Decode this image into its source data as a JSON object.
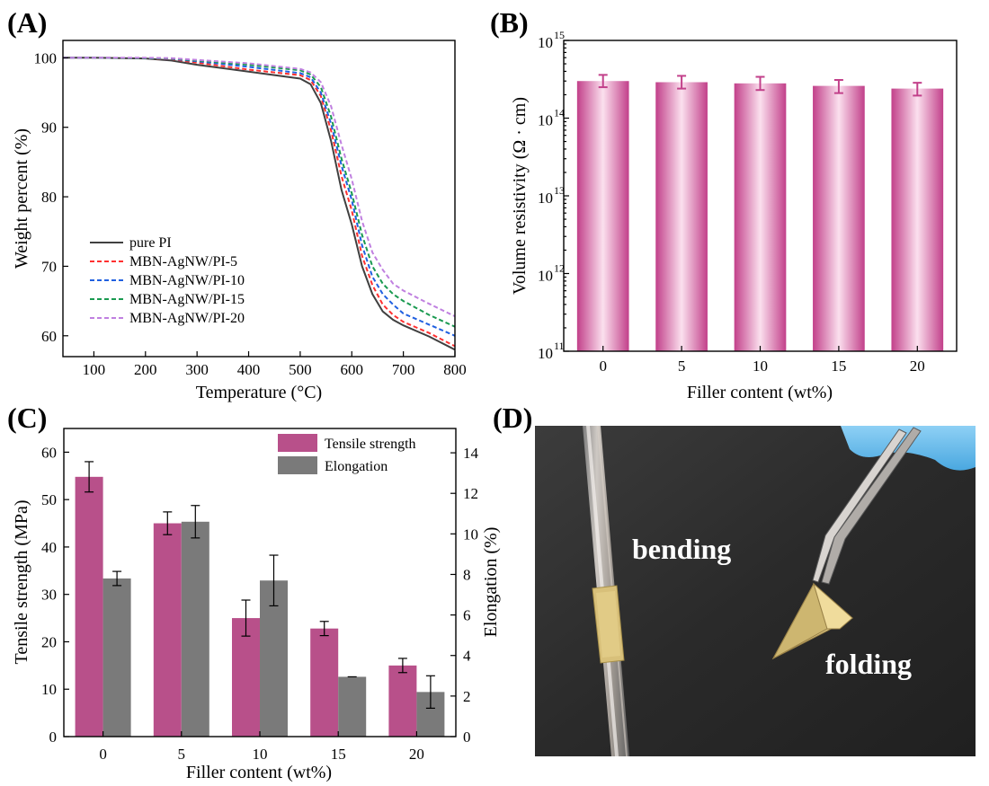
{
  "panels": {
    "a": "(A)",
    "b": "(B)",
    "c": "(C)",
    "d": "(D)"
  },
  "chart_data": [
    {
      "id": "A",
      "type": "line",
      "title": "",
      "xlabel": "Temperature (°C)",
      "ylabel": "Weight percent (%)",
      "xlim": [
        40,
        800
      ],
      "ylim": [
        57,
        102.5
      ],
      "xticks": [
        "100",
        "200",
        "300",
        "400",
        "500",
        "600",
        "700",
        "800"
      ],
      "yticks": [
        "60",
        "70",
        "80",
        "90",
        "100"
      ],
      "grid": false,
      "legend": "bottom-left",
      "series": [
        {
          "name": "pure PI",
          "style": "solid",
          "color": "#404040",
          "x": [
            40,
            100,
            200,
            250,
            300,
            400,
            500,
            520,
            540,
            560,
            580,
            600,
            620,
            640,
            660,
            680,
            700,
            750,
            800
          ],
          "y": [
            100,
            100,
            99.9,
            99.6,
            99,
            98,
            97,
            96.2,
            93.5,
            88,
            81,
            76,
            70,
            66,
            63.5,
            62.3,
            61.5,
            59.9,
            58
          ]
        },
        {
          "name": "MBN-AgNW/PI-5",
          "style": "dashed",
          "color": "#ff3030",
          "x": [
            40,
            100,
            200,
            250,
            300,
            400,
            500,
            520,
            540,
            560,
            580,
            600,
            620,
            640,
            660,
            680,
            700,
            750,
            800
          ],
          "y": [
            100,
            100,
            99.95,
            99.8,
            99.3,
            98.3,
            97.5,
            96.8,
            94.5,
            89.5,
            83,
            78,
            71.5,
            67.3,
            64.5,
            63,
            62,
            60.4,
            58.5
          ]
        },
        {
          "name": "MBN-AgNW/PI-10",
          "style": "dashed",
          "color": "#2060e0",
          "x": [
            40,
            100,
            200,
            250,
            300,
            400,
            500,
            520,
            540,
            560,
            580,
            600,
            620,
            640,
            660,
            680,
            700,
            750,
            800
          ],
          "y": [
            100,
            100,
            99.95,
            99.85,
            99.5,
            98.7,
            97.8,
            97.2,
            95,
            90.5,
            84.5,
            79.5,
            73,
            68.5,
            66,
            64.5,
            63.2,
            61.6,
            60
          ]
        },
        {
          "name": "MBN-AgNW/PI-15",
          "style": "dashed",
          "color": "#1a9a50",
          "x": [
            40,
            100,
            200,
            250,
            300,
            400,
            500,
            520,
            540,
            560,
            580,
            600,
            620,
            640,
            660,
            680,
            700,
            750,
            800
          ],
          "y": [
            100,
            100,
            99.95,
            99.9,
            99.6,
            99,
            98.2,
            97.6,
            95.8,
            91.5,
            85.5,
            80.5,
            74.5,
            70,
            67.5,
            66,
            65,
            63,
            61.3
          ]
        },
        {
          "name": "MBN-AgNW/PI-20",
          "style": "dashed",
          "color": "#c080e0",
          "x": [
            40,
            100,
            200,
            250,
            300,
            400,
            500,
            520,
            540,
            560,
            580,
            600,
            620,
            640,
            660,
            680,
            700,
            750,
            800
          ],
          "y": [
            100,
            100,
            100,
            99.95,
            99.7,
            99.2,
            98.4,
            97.9,
            96.5,
            93,
            87.5,
            82.5,
            76.5,
            72,
            69.5,
            67.5,
            66.5,
            64.6,
            62.8
          ]
        }
      ]
    },
    {
      "id": "B",
      "type": "bar",
      "title": "",
      "xlabel": "Filler content (wt%)",
      "ylabel": "Volume resistivity  (Ω · cm)",
      "yscale": "log",
      "ylim": [
        100000000000.0,
        1000000000000000.0
      ],
      "yticks": [
        {
          "base": "10",
          "exp": "11",
          "value": 11
        },
        {
          "base": "10",
          "exp": "12",
          "value": 12
        },
        {
          "base": "10",
          "exp": "13",
          "value": 13
        },
        {
          "base": "10",
          "exp": "14",
          "value": 14
        },
        {
          "base": "10",
          "exp": "15",
          "value": 15
        }
      ],
      "categories": [
        "0",
        "5",
        "10",
        "15",
        "20"
      ],
      "values": [
        300000000000000.0,
        290000000000000.0,
        280000000000000.0,
        260000000000000.0,
        240000000000000.0
      ],
      "err_low": [
        250000000000000.0,
        240000000000000.0,
        230000000000000.0,
        210000000000000.0,
        195000000000000.0
      ],
      "err_high": [
        360000000000000.0,
        350000000000000.0,
        340000000000000.0,
        310000000000000.0,
        285000000000000.0
      ],
      "bar_color": "#c2408a"
    },
    {
      "id": "C",
      "type": "bar",
      "title": "",
      "xlabel": "Filler content (wt%)",
      "ylabel": "Tensile strength (MPa)",
      "y2label": "Elongation (%)",
      "ylim": [
        0,
        65
      ],
      "y2lim": [
        0,
        15.2
      ],
      "yticks": [
        "0",
        "10",
        "20",
        "30",
        "40",
        "50",
        "60"
      ],
      "y2ticks": [
        "0",
        "2",
        "4",
        "6",
        "8",
        "10",
        "12",
        "14"
      ],
      "categories": [
        "0",
        "5",
        "10",
        "15",
        "20"
      ],
      "legend": "top-right",
      "series": [
        {
          "name": "Tensile strength",
          "axis": "left",
          "color": "#b8508a",
          "values": [
            54.8,
            45.0,
            25.0,
            22.8,
            15.0
          ],
          "errors": [
            3.2,
            2.4,
            3.8,
            1.5,
            1.5
          ]
        },
        {
          "name": "Elongation",
          "axis": "right",
          "color": "#7a7a7a",
          "values": [
            7.8,
            10.6,
            7.7,
            2.95,
            2.2
          ],
          "errors": [
            0.35,
            0.8,
            1.25,
            0.0,
            0.8
          ]
        }
      ]
    }
  ],
  "photo": {
    "label_bending": "bending",
    "label_folding": "folding"
  }
}
